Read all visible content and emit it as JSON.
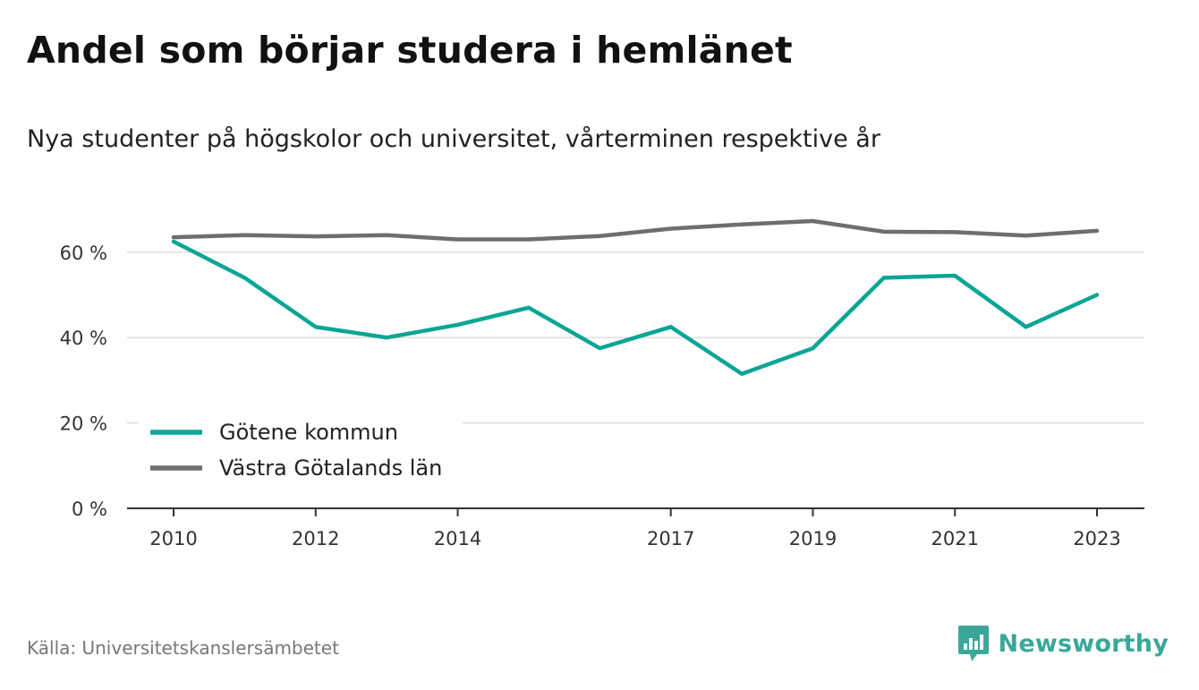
{
  "title": "Andel som börjar studera i hemlänet",
  "subtitle": "Nya studenter på högskolor och universitet, vårterminen respektive år",
  "source": "Källa: Universitetskanslersämbetet",
  "brand": "Newsworthy",
  "colors": {
    "gotene": "#0aa597",
    "vastra": "#6d6d72",
    "grid": "#dddddd",
    "axis": "#333333",
    "brand": "#3aa79a"
  },
  "chart_data": {
    "type": "line",
    "x": [
      2010,
      2011,
      2012,
      2013,
      2014,
      2015,
      2016,
      2017,
      2018,
      2019,
      2020,
      2021,
      2022,
      2023
    ],
    "xticks": [
      2010,
      2012,
      2014,
      2017,
      2019,
      2021,
      2023
    ],
    "ylim": [
      0,
      74
    ],
    "yticks": [
      0,
      20,
      40,
      60
    ],
    "ytick_labels": [
      "0 %",
      "20 %",
      "40 %",
      "60 %"
    ],
    "grid": true,
    "legend_position": "bottom-left",
    "series": [
      {
        "name": "Götene kommun",
        "color": "#0aa597",
        "values": [
          62.5,
          54,
          42.5,
          40,
          43,
          47,
          37.5,
          42.5,
          31.5,
          37.5,
          54,
          54.5,
          42.5,
          50
        ]
      },
      {
        "name": "Västra Götalands län",
        "color": "#6d6d72",
        "values": [
          63.5,
          64,
          63.7,
          64,
          63,
          63,
          63.8,
          65.5,
          66.5,
          67.3,
          64.8,
          64.7,
          63.9,
          65
        ]
      }
    ]
  }
}
